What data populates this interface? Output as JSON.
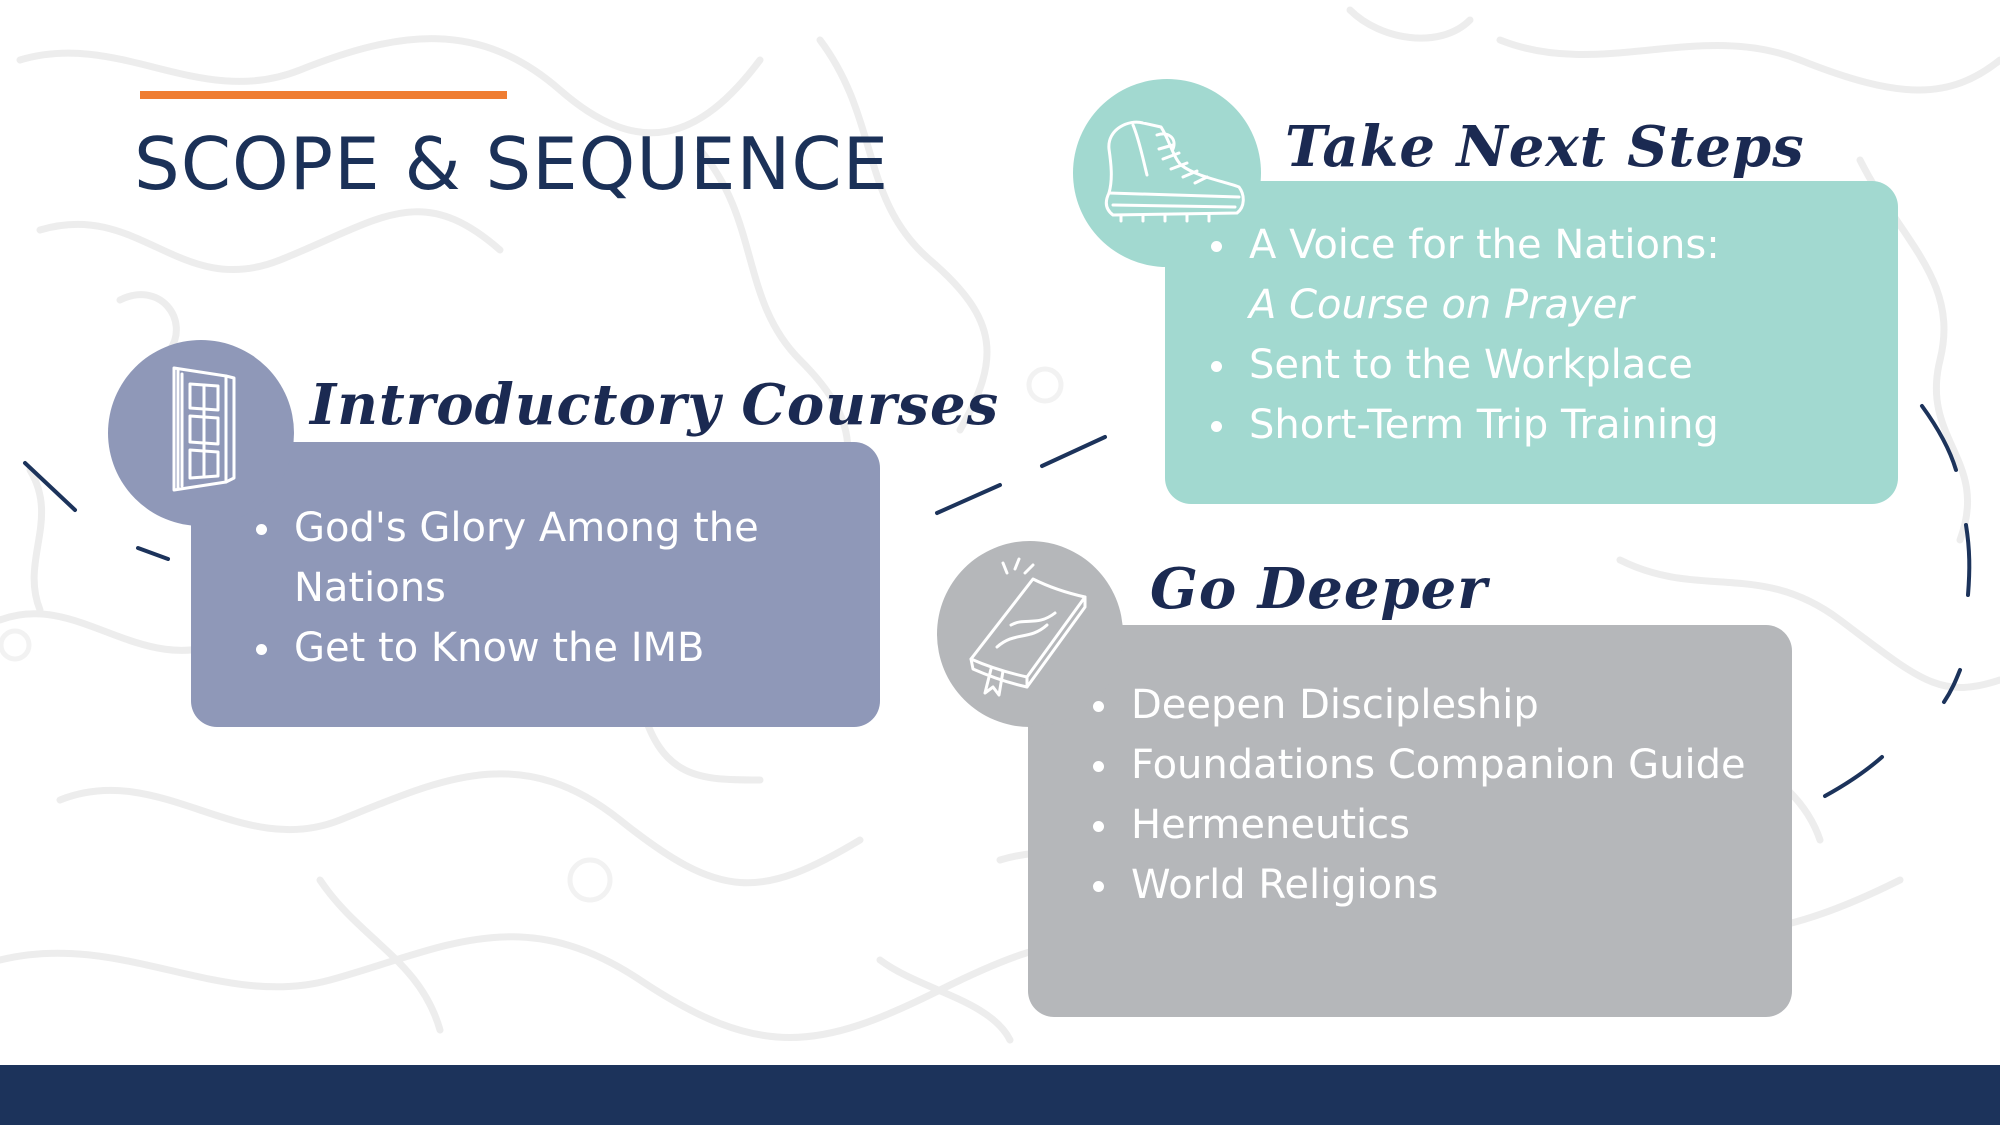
{
  "title": "SCOPE & SEQUENCE",
  "colors": {
    "accent_line": "#ef7d32",
    "title_text": "#1b3158",
    "footer": "#1c335b",
    "intro_card": "#8f98b8",
    "next_card": "#a2d9d0",
    "deep_card": "#b5b7ba",
    "heading_text": "#1b2a52"
  },
  "sections": {
    "intro": {
      "heading": "Introductory Courses",
      "icon": "door-icon",
      "items": [
        "God's Glory Among the Nations",
        "Get to Know the IMB"
      ]
    },
    "next": {
      "heading": "Take Next Steps",
      "icon": "hiking-boot-icon",
      "items": [
        {
          "main": "A Voice for the Nations:",
          "sub": "A Course on Prayer"
        },
        {
          "main": "Sent to the Workplace"
        },
        {
          "main": "Short-Term Trip Training"
        }
      ]
    },
    "deep": {
      "heading": "Go Deeper",
      "icon": "book-icon",
      "items": [
        "Deepen Discipleship",
        "Foundations Companion Guide",
        "Hermeneutics",
        "World Religions"
      ]
    }
  }
}
